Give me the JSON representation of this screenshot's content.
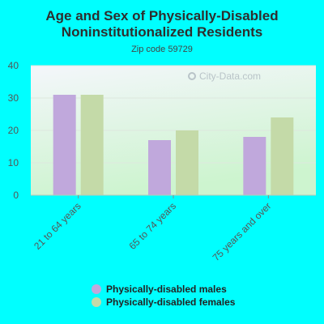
{
  "chart_data": {
    "type": "bar",
    "title": "Age and Sex of Physically-Disabled Noninstitutionalized Residents",
    "subtitle": "Zip code 59729",
    "categories": [
      "21 to 64 years",
      "65 to 74 years",
      "75 years and over"
    ],
    "series": [
      {
        "name": "Physically-disabled males",
        "values": [
          31,
          17,
          18
        ],
        "color": "#c0a8dc"
      },
      {
        "name": "Physically-disabled females",
        "values": [
          31,
          20,
          24
        ],
        "color": "#c4daa8"
      }
    ],
    "yticks": [
      0,
      10,
      20,
      30,
      40
    ],
    "ylim": [
      0,
      40
    ],
    "grid": true,
    "legend_position": "bottom"
  },
  "watermark": "City-Data.com",
  "colors": {
    "background": "#00ffff",
    "plot_top": "#f4f6fb",
    "plot_bottom": "#d0f4d2"
  }
}
